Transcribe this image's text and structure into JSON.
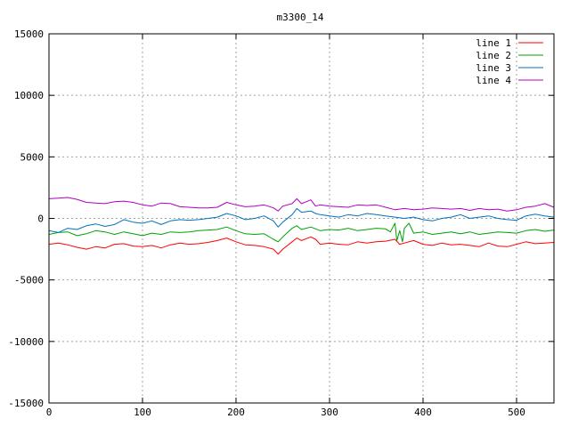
{
  "chart_data": {
    "type": "line",
    "title": "m3300_14",
    "xlabel": "",
    "ylabel": "",
    "xlim": [
      0,
      540
    ],
    "ylim": [
      -15000,
      15000
    ],
    "xticks": [
      0,
      100,
      200,
      300,
      400,
      500
    ],
    "yticks": [
      -15000,
      -10000,
      -5000,
      0,
      5000,
      10000,
      15000
    ],
    "grid": true,
    "legend_position": "top-right",
    "series": [
      {
        "name": "line 1",
        "color": "#ff0000",
        "points": [
          [
            0,
            -2100
          ],
          [
            10,
            -2000
          ],
          [
            20,
            -2150
          ],
          [
            30,
            -2350
          ],
          [
            40,
            -2500
          ],
          [
            50,
            -2300
          ],
          [
            60,
            -2400
          ],
          [
            70,
            -2100
          ],
          [
            80,
            -2050
          ],
          [
            90,
            -2250
          ],
          [
            100,
            -2300
          ],
          [
            110,
            -2200
          ],
          [
            120,
            -2400
          ],
          [
            130,
            -2150
          ],
          [
            140,
            -2000
          ],
          [
            150,
            -2100
          ],
          [
            160,
            -2050
          ],
          [
            170,
            -1950
          ],
          [
            180,
            -1800
          ],
          [
            190,
            -1600
          ],
          [
            200,
            -1900
          ],
          [
            210,
            -2150
          ],
          [
            220,
            -2200
          ],
          [
            230,
            -2300
          ],
          [
            240,
            -2500
          ],
          [
            245,
            -2900
          ],
          [
            250,
            -2500
          ],
          [
            260,
            -1900
          ],
          [
            265,
            -1600
          ],
          [
            270,
            -1800
          ],
          [
            280,
            -1500
          ],
          [
            285,
            -1700
          ],
          [
            290,
            -2100
          ],
          [
            300,
            -2000
          ],
          [
            310,
            -2100
          ],
          [
            320,
            -2150
          ],
          [
            330,
            -1900
          ],
          [
            340,
            -2000
          ],
          [
            350,
            -1900
          ],
          [
            360,
            -1850
          ],
          [
            370,
            -1700
          ],
          [
            375,
            -2100
          ],
          [
            380,
            -2000
          ],
          [
            390,
            -1800
          ],
          [
            400,
            -2100
          ],
          [
            410,
            -2200
          ],
          [
            420,
            -2000
          ],
          [
            430,
            -2150
          ],
          [
            440,
            -2100
          ],
          [
            450,
            -2200
          ],
          [
            460,
            -2300
          ],
          [
            470,
            -2000
          ],
          [
            480,
            -2250
          ],
          [
            490,
            -2300
          ],
          [
            500,
            -2100
          ],
          [
            510,
            -1900
          ],
          [
            520,
            -2050
          ],
          [
            530,
            -2000
          ],
          [
            540,
            -1950
          ]
        ]
      },
      {
        "name": "line 2",
        "color": "#00a000",
        "points": [
          [
            0,
            -1300
          ],
          [
            10,
            -1150
          ],
          [
            20,
            -1100
          ],
          [
            30,
            -1400
          ],
          [
            40,
            -1250
          ],
          [
            50,
            -1000
          ],
          [
            60,
            -1100
          ],
          [
            70,
            -1300
          ],
          [
            80,
            -1100
          ],
          [
            90,
            -1250
          ],
          [
            100,
            -1400
          ],
          [
            110,
            -1200
          ],
          [
            120,
            -1300
          ],
          [
            130,
            -1100
          ],
          [
            140,
            -1150
          ],
          [
            150,
            -1100
          ],
          [
            160,
            -1000
          ],
          [
            170,
            -950
          ],
          [
            180,
            -900
          ],
          [
            190,
            -700
          ],
          [
            200,
            -1000
          ],
          [
            210,
            -1250
          ],
          [
            220,
            -1300
          ],
          [
            230,
            -1250
          ],
          [
            240,
            -1700
          ],
          [
            245,
            -1900
          ],
          [
            250,
            -1500
          ],
          [
            260,
            -800
          ],
          [
            265,
            -600
          ],
          [
            270,
            -900
          ],
          [
            280,
            -700
          ],
          [
            290,
            -1000
          ],
          [
            300,
            -900
          ],
          [
            310,
            -950
          ],
          [
            320,
            -800
          ],
          [
            330,
            -1000
          ],
          [
            340,
            -900
          ],
          [
            350,
            -800
          ],
          [
            360,
            -850
          ],
          [
            365,
            -1100
          ],
          [
            370,
            -400
          ],
          [
            372,
            -1800
          ],
          [
            375,
            -1000
          ],
          [
            378,
            -1900
          ],
          [
            380,
            -800
          ],
          [
            385,
            -400
          ],
          [
            390,
            -1200
          ],
          [
            400,
            -1100
          ],
          [
            410,
            -1300
          ],
          [
            420,
            -1200
          ],
          [
            430,
            -1100
          ],
          [
            440,
            -1250
          ],
          [
            450,
            -1100
          ],
          [
            460,
            -1300
          ],
          [
            470,
            -1200
          ],
          [
            480,
            -1100
          ],
          [
            490,
            -1150
          ],
          [
            500,
            -1200
          ],
          [
            510,
            -1000
          ],
          [
            520,
            -900
          ],
          [
            530,
            -1050
          ],
          [
            540,
            -950
          ]
        ]
      },
      {
        "name": "line 3",
        "color": "#0070c0",
        "points": [
          [
            0,
            -1000
          ],
          [
            10,
            -1150
          ],
          [
            20,
            -800
          ],
          [
            30,
            -900
          ],
          [
            40,
            -600
          ],
          [
            50,
            -450
          ],
          [
            60,
            -650
          ],
          [
            70,
            -500
          ],
          [
            80,
            -100
          ],
          [
            90,
            -300
          ],
          [
            100,
            -400
          ],
          [
            110,
            -200
          ],
          [
            120,
            -500
          ],
          [
            130,
            -200
          ],
          [
            140,
            -100
          ],
          [
            150,
            -150
          ],
          [
            160,
            -100
          ],
          [
            170,
            0
          ],
          [
            180,
            100
          ],
          [
            190,
            400
          ],
          [
            200,
            200
          ],
          [
            210,
            -100
          ],
          [
            220,
            0
          ],
          [
            230,
            200
          ],
          [
            240,
            -200
          ],
          [
            245,
            -700
          ],
          [
            250,
            -300
          ],
          [
            260,
            300
          ],
          [
            265,
            800
          ],
          [
            270,
            500
          ],
          [
            280,
            600
          ],
          [
            285,
            400
          ],
          [
            290,
            300
          ],
          [
            300,
            200
          ],
          [
            310,
            100
          ],
          [
            320,
            300
          ],
          [
            330,
            200
          ],
          [
            340,
            400
          ],
          [
            350,
            300
          ],
          [
            360,
            200
          ],
          [
            370,
            100
          ],
          [
            380,
            0
          ],
          [
            390,
            100
          ],
          [
            400,
            -100
          ],
          [
            410,
            -200
          ],
          [
            420,
            0
          ],
          [
            430,
            100
          ],
          [
            440,
            300
          ],
          [
            450,
            0
          ],
          [
            460,
            100
          ],
          [
            470,
            200
          ],
          [
            480,
            0
          ],
          [
            490,
            -100
          ],
          [
            500,
            -150
          ],
          [
            510,
            200
          ],
          [
            520,
            350
          ],
          [
            530,
            200
          ],
          [
            540,
            100
          ]
        ]
      },
      {
        "name": "line 4",
        "color": "#b000c0",
        "points": [
          [
            0,
            1600
          ],
          [
            10,
            1650
          ],
          [
            20,
            1700
          ],
          [
            30,
            1550
          ],
          [
            40,
            1300
          ],
          [
            50,
            1250
          ],
          [
            60,
            1200
          ],
          [
            70,
            1350
          ],
          [
            80,
            1400
          ],
          [
            90,
            1300
          ],
          [
            100,
            1100
          ],
          [
            110,
            1000
          ],
          [
            120,
            1250
          ],
          [
            130,
            1200
          ],
          [
            140,
            950
          ],
          [
            150,
            900
          ],
          [
            160,
            850
          ],
          [
            170,
            850
          ],
          [
            180,
            900
          ],
          [
            190,
            1300
          ],
          [
            200,
            1100
          ],
          [
            210,
            950
          ],
          [
            220,
            1000
          ],
          [
            230,
            1100
          ],
          [
            240,
            850
          ],
          [
            245,
            600
          ],
          [
            250,
            1000
          ],
          [
            260,
            1200
          ],
          [
            265,
            1600
          ],
          [
            270,
            1200
          ],
          [
            280,
            1500
          ],
          [
            285,
            1000
          ],
          [
            290,
            1100
          ],
          [
            300,
            1000
          ],
          [
            310,
            950
          ],
          [
            320,
            900
          ],
          [
            330,
            1100
          ],
          [
            340,
            1050
          ],
          [
            350,
            1100
          ],
          [
            360,
            900
          ],
          [
            370,
            700
          ],
          [
            380,
            800
          ],
          [
            390,
            700
          ],
          [
            400,
            750
          ],
          [
            410,
            850
          ],
          [
            420,
            800
          ],
          [
            430,
            750
          ],
          [
            440,
            800
          ],
          [
            450,
            650
          ],
          [
            460,
            800
          ],
          [
            470,
            700
          ],
          [
            480,
            750
          ],
          [
            490,
            600
          ],
          [
            500,
            700
          ],
          [
            510,
            900
          ],
          [
            520,
            1000
          ],
          [
            530,
            1200
          ],
          [
            540,
            900
          ]
        ]
      }
    ]
  }
}
